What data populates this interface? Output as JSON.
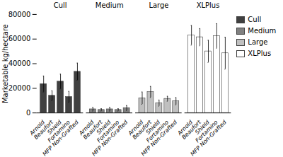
{
  "chart_data": {
    "type": "bar",
    "categories": [
      "Arnold",
      "Beaufort",
      "Shield",
      "Fortamino",
      "MFP Non-Grafted"
    ],
    "series": [
      {
        "name": "Cull",
        "color": "#404040",
        "values": [
          23500,
          14000,
          25500,
          13000,
          33500
        ],
        "errors": [
          6500,
          4000,
          6000,
          4500,
          7000
        ]
      },
      {
        "name": "Medium",
        "color": "#808080",
        "values": [
          3000,
          2500,
          3000,
          2500,
          4000
        ],
        "errors": [
          1500,
          1000,
          1500,
          1000,
          2000
        ]
      },
      {
        "name": "Large",
        "color": "#c0c0c0",
        "values": [
          12000,
          17000,
          8000,
          11500,
          9500
        ],
        "errors": [
          5000,
          4500,
          2500,
          2000,
          3000
        ]
      },
      {
        "name": "XLPlus",
        "color": "#ffffff",
        "values": [
          63000,
          61500,
          50000,
          62500,
          48500
        ],
        "errors": [
          8000,
          7000,
          9000,
          10000,
          13000
        ]
      }
    ],
    "ylabel": "Marketable kg/hectare",
    "ylim": [
      0,
      80000
    ],
    "yticks": [
      0,
      20000,
      40000,
      60000,
      80000
    ],
    "grid": false,
    "legend": "right"
  }
}
